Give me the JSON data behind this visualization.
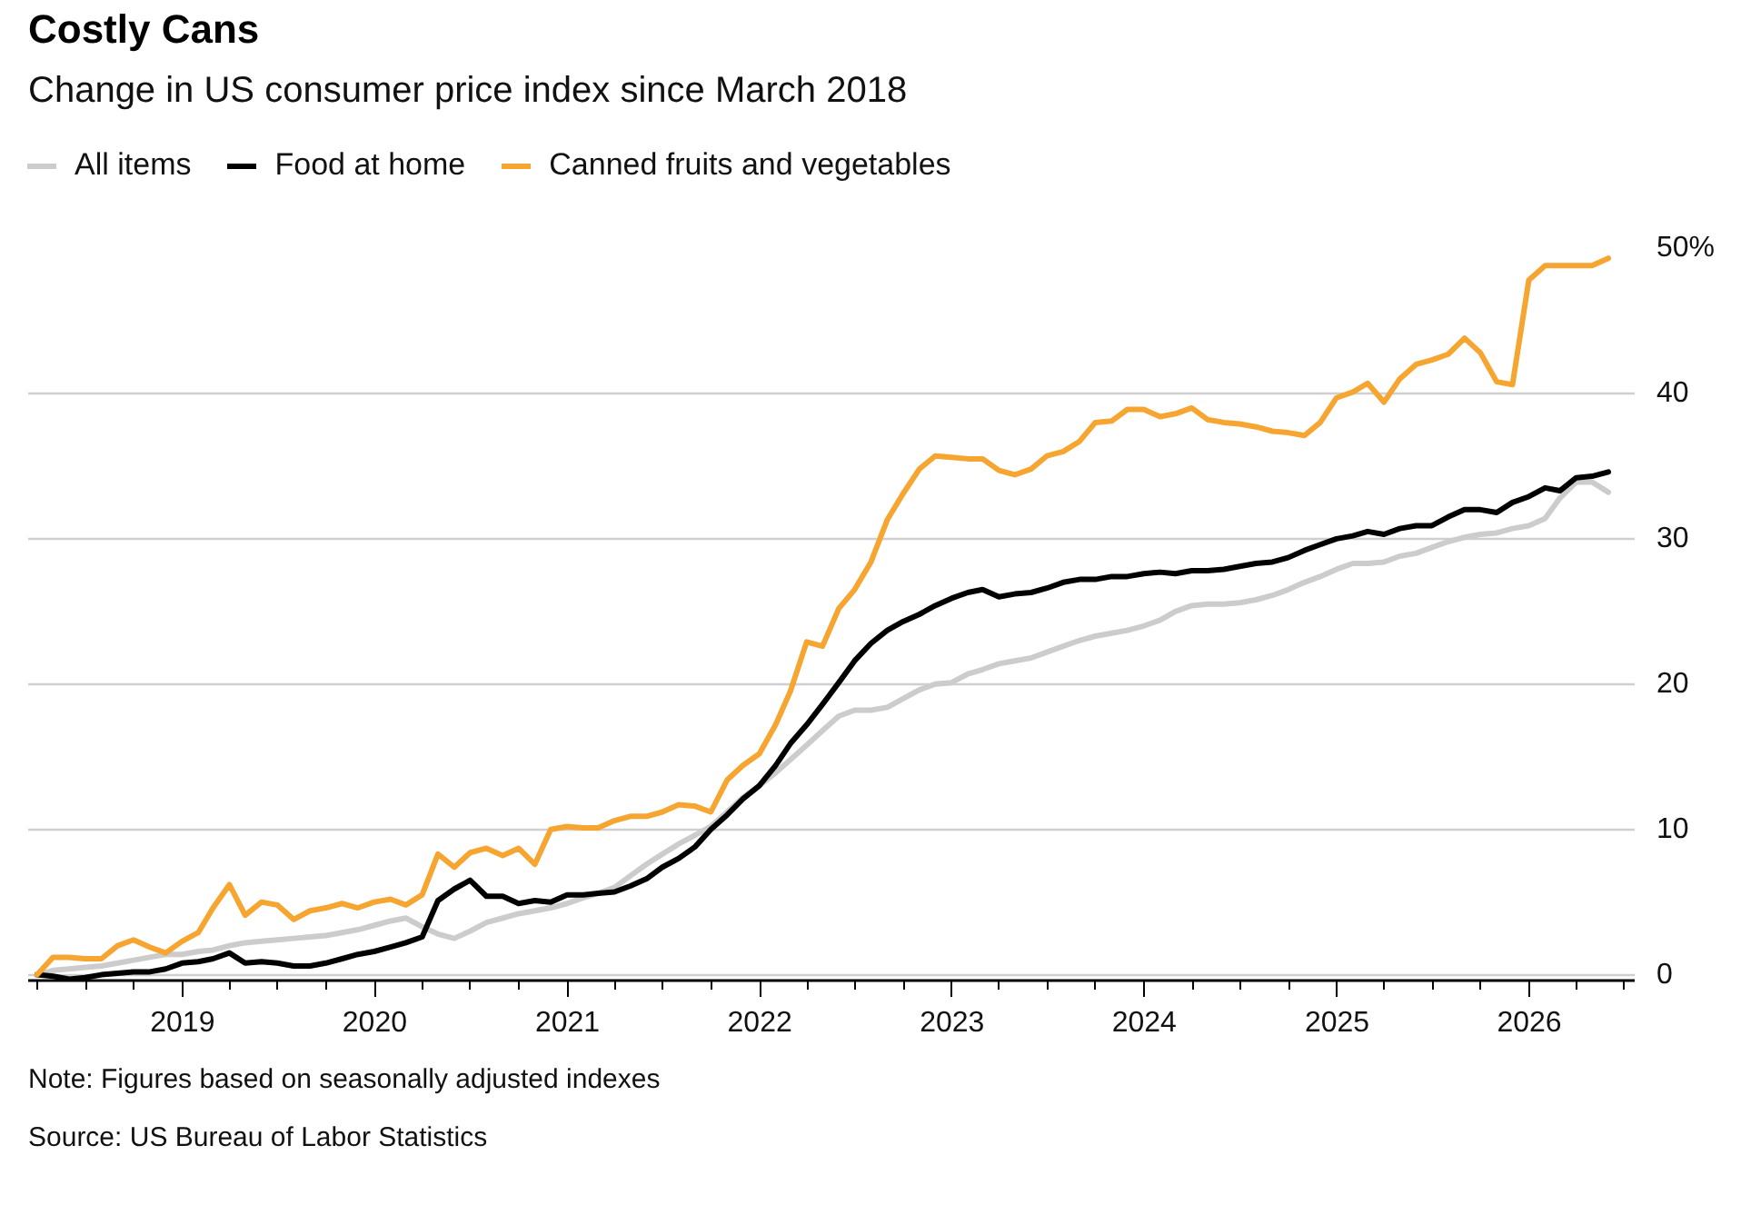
{
  "chart_data": {
    "type": "line",
    "title": "Costly Cans",
    "subtitle": "Change in US consumer price index since March 2018",
    "annotations": [
      "Note: Figures based on seasonally adjusted indexes",
      "Source: US Bureau of Labor Statistics"
    ],
    "x": [
      "2018-03-31",
      "2018-04-30",
      "2018-05-31",
      "2018-06-30",
      "2018-07-31",
      "2018-08-31",
      "2018-09-30",
      "2018-10-31",
      "2018-11-30",
      "2018-12-31",
      "2019-01-31",
      "2019-02-28",
      "2019-03-31",
      "2019-04-30",
      "2019-05-31",
      "2019-06-30",
      "2019-07-31",
      "2019-08-31",
      "2019-09-30",
      "2019-10-31",
      "2019-11-30",
      "2019-12-31",
      "2020-01-31",
      "2020-02-29",
      "2020-03-31",
      "2020-04-30",
      "2020-05-31",
      "2020-06-30",
      "2020-07-31",
      "2020-08-31",
      "2020-09-30",
      "2020-10-31",
      "2020-11-30",
      "2020-12-31",
      "2021-01-31",
      "2021-02-28",
      "2021-03-31",
      "2021-04-30",
      "2021-05-31",
      "2021-06-30",
      "2021-07-31",
      "2021-08-31",
      "2021-09-30",
      "2021-10-31",
      "2021-11-30",
      "2021-12-31",
      "2022-01-31",
      "2022-02-28",
      "2022-03-31",
      "2022-04-30",
      "2022-05-31",
      "2022-06-30",
      "2022-07-31",
      "2022-08-31",
      "2022-09-30",
      "2022-10-31",
      "2022-11-30",
      "2022-12-31",
      "2023-01-31",
      "2023-02-28",
      "2023-03-31",
      "2023-04-30",
      "2023-05-31",
      "2023-06-30",
      "2023-07-31",
      "2023-08-31",
      "2023-09-30",
      "2023-10-31",
      "2023-11-30",
      "2023-12-31",
      "2024-01-31",
      "2024-02-29",
      "2024-03-31",
      "2024-04-30",
      "2024-05-31",
      "2024-06-30",
      "2024-07-31",
      "2024-08-31",
      "2024-09-30",
      "2024-10-31",
      "2024-11-30",
      "2024-12-31",
      "2025-01-31",
      "2025-02-28",
      "2025-03-31",
      "2025-04-30",
      "2025-05-31",
      "2025-06-30",
      "2025-07-31",
      "2025-08-31",
      "2025-09-30",
      "2025-10-31",
      "2025-11-30",
      "2025-12-31",
      "2026-01-31",
      "2026-02-28",
      "2026-03-31",
      "2026-04-30",
      "2026-05-31"
    ],
    "series": [
      {
        "name": "All items",
        "color": "#cccccc",
        "values": [
          0,
          0.3,
          0.4,
          0.5,
          0.6,
          0.8,
          1.0,
          1.2,
          1.4,
          1.4,
          1.6,
          1.7,
          2.0,
          2.2,
          2.3,
          2.4,
          2.5,
          2.6,
          2.7,
          2.9,
          3.1,
          3.4,
          3.7,
          3.9,
          3.3,
          2.8,
          2.5,
          3.0,
          3.6,
          3.9,
          4.2,
          4.4,
          4.6,
          4.9,
          5.3,
          5.6,
          6.0,
          6.8,
          7.6,
          8.3,
          9.0,
          9.6,
          10.2,
          11.2,
          12.2,
          13.0,
          13.9,
          14.8,
          15.8,
          16.8,
          17.8,
          18.2,
          18.2,
          18.4,
          19.0,
          19.6,
          20.0,
          20.1,
          20.7,
          21.0,
          21.4,
          21.6,
          21.8,
          22.2,
          22.6,
          23.0,
          23.3,
          23.5,
          23.7,
          24.0,
          24.4,
          25.0,
          25.4,
          25.5,
          25.5,
          25.6,
          25.8,
          26.1,
          26.5,
          27.0,
          27.4,
          27.9,
          28.3,
          28.3,
          28.4,
          28.8,
          29.0,
          29.4,
          29.8,
          30.1,
          30.3,
          30.4,
          30.7,
          30.9,
          31.4,
          32.8,
          33.9,
          33.9,
          33.2
        ]
      },
      {
        "name": "Food at home",
        "color": "#000000",
        "values": [
          0,
          -0.1,
          -0.3,
          -0.2,
          0.0,
          0.1,
          0.2,
          0.2,
          0.4,
          0.8,
          0.9,
          1.1,
          1.5,
          0.8,
          0.9,
          0.8,
          0.6,
          0.6,
          0.8,
          1.1,
          1.4,
          1.6,
          1.9,
          2.2,
          2.6,
          5.1,
          5.9,
          6.5,
          5.4,
          5.4,
          4.9,
          5.1,
          5.0,
          5.5,
          5.5,
          5.6,
          5.7,
          6.1,
          6.6,
          7.4,
          8.0,
          8.8,
          10.0,
          11.0,
          12.1,
          13.0,
          14.4,
          15.9,
          17.2,
          18.6,
          20.1,
          21.6,
          22.8,
          23.7,
          24.3,
          24.8,
          25.4,
          25.9,
          26.3,
          26.5,
          26.0,
          26.2,
          26.3,
          26.6,
          27.0,
          27.2,
          27.2,
          27.4,
          27.4,
          27.6,
          27.7,
          27.6,
          27.8,
          27.8,
          27.9,
          28.1,
          28.3,
          28.4,
          28.7,
          29.2,
          29.6,
          30.0,
          30.2,
          30.5,
          30.3,
          30.7,
          30.9,
          30.9,
          31.5,
          32.0,
          32.0,
          31.8,
          32.5,
          32.9,
          33.5,
          33.3,
          34.2,
          34.3,
          34.6
        ]
      },
      {
        "name": "Canned fruits and vegetables",
        "color": "#f6a531",
        "values": [
          0,
          1.2,
          1.2,
          1.1,
          1.1,
          2.0,
          2.4,
          1.9,
          1.5,
          2.3,
          2.9,
          4.6,
          6.2,
          4.1,
          5.0,
          4.8,
          3.8,
          4.4,
          4.6,
          4.9,
          4.6,
          5.0,
          5.2,
          4.8,
          5.5,
          8.3,
          7.4,
          8.4,
          8.7,
          8.2,
          8.7,
          7.6,
          10.0,
          10.2,
          10.1,
          10.1,
          10.6,
          10.9,
          10.9,
          11.2,
          11.7,
          11.6,
          11.2,
          13.4,
          14.4,
          15.2,
          17.2,
          19.5,
          22.9,
          22.6,
          25.2,
          26.5,
          28.4,
          31.3,
          33.1,
          34.8,
          35.7,
          35.6,
          35.5,
          35.5,
          34.7,
          34.4,
          34.8,
          35.7,
          36.0,
          36.7,
          38.0,
          38.1,
          38.9,
          38.9,
          38.4,
          38.6,
          39.0,
          38.2,
          38.0,
          37.9,
          37.7,
          37.4,
          37.3,
          37.1,
          38.0,
          39.7,
          40.1,
          40.7,
          39.4,
          41.0,
          42.0,
          42.3,
          42.7,
          43.8,
          42.8,
          40.8,
          40.6,
          47.8,
          48.8,
          48.8,
          48.8,
          48.8,
          49.3
        ]
      }
    ],
    "xlim": [
      "2018-03-14",
      "2026-07-20"
    ],
    "xticks": [
      {
        "value": "2018-04",
        "label": null
      },
      {
        "value": "2018-07",
        "label": null
      },
      {
        "value": "2018-10",
        "label": null
      },
      {
        "value": "2019-01",
        "label": "2019"
      },
      {
        "value": "2019-04",
        "label": null
      },
      {
        "value": "2019-07",
        "label": null
      },
      {
        "value": "2019-10",
        "label": null
      },
      {
        "value": "2020-01",
        "label": "2020"
      },
      {
        "value": "2020-04",
        "label": null
      },
      {
        "value": "2020-07",
        "label": null
      },
      {
        "value": "2020-10",
        "label": null
      },
      {
        "value": "2021-01",
        "label": "2021"
      },
      {
        "value": "2021-04",
        "label": null
      },
      {
        "value": "2021-07",
        "label": null
      },
      {
        "value": "2021-10",
        "label": null
      },
      {
        "value": "2022-01",
        "label": "2022"
      },
      {
        "value": "2022-04",
        "label": null
      },
      {
        "value": "2022-07",
        "label": null
      },
      {
        "value": "2022-10",
        "label": null
      },
      {
        "value": "2023-01",
        "label": "2023"
      },
      {
        "value": "2023-04",
        "label": null
      },
      {
        "value": "2023-07",
        "label": null
      },
      {
        "value": "2023-10",
        "label": null
      },
      {
        "value": "2024-01",
        "label": "2024"
      },
      {
        "value": "2024-04",
        "label": null
      },
      {
        "value": "2024-07",
        "label": null
      },
      {
        "value": "2024-10",
        "label": null
      },
      {
        "value": "2025-01",
        "label": "2025"
      },
      {
        "value": "2025-04",
        "label": null
      },
      {
        "value": "2025-07",
        "label": null
      },
      {
        "value": "2025-10",
        "label": null
      },
      {
        "value": "2026-01",
        "label": "2026"
      },
      {
        "value": "2026-04",
        "label": null
      },
      {
        "value": "2026-07",
        "label": null
      }
    ],
    "ylim": [
      -0.4,
      50
    ],
    "yticks": [
      0,
      10,
      20,
      30,
      40,
      {
        "value": 50,
        "label": "50%"
      }
    ],
    "grid": "y",
    "legend": "top left",
    "line_style": "solid"
  }
}
